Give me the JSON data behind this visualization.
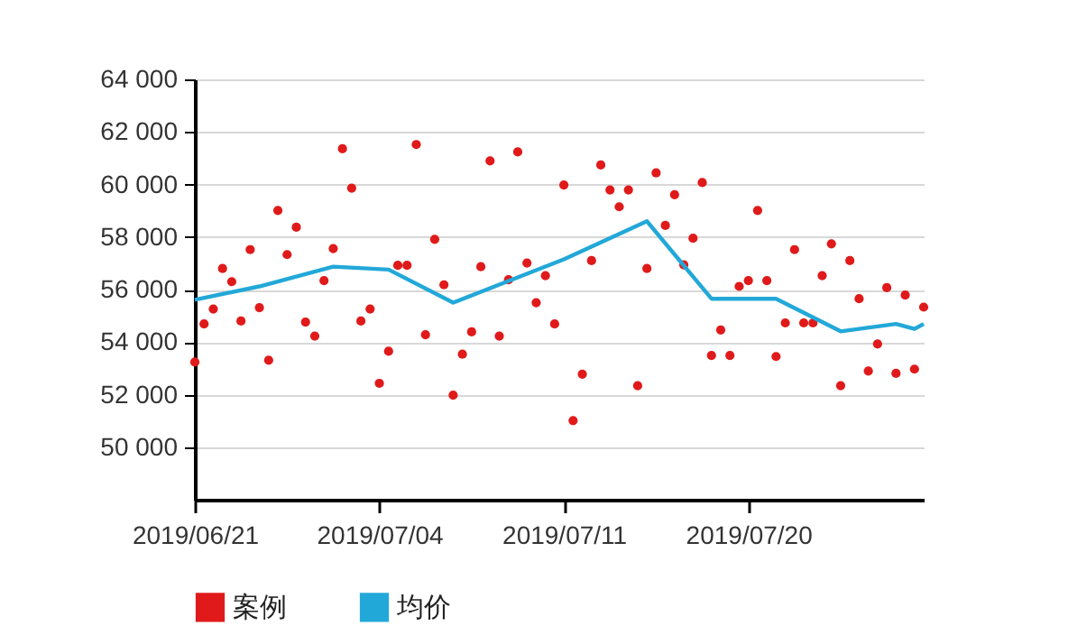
{
  "chart_data": {
    "type": "scatter",
    "categories": [
      "2019/06/21",
      null,
      null,
      null,
      null,
      null,
      null,
      null,
      null,
      null,
      null,
      null,
      null,
      null,
      null,
      null,
      null,
      null,
      null,
      null,
      "2019/07/04",
      null,
      null,
      null,
      null,
      null,
      null,
      null,
      null,
      null,
      null,
      null,
      null,
      null,
      null,
      null,
      null,
      null,
      null,
      null,
      "2019/07/11",
      null,
      null,
      null,
      null,
      null,
      null,
      null,
      null,
      null,
      null,
      null,
      null,
      null,
      null,
      null,
      null,
      null,
      null,
      null,
      "2019/07/20",
      null,
      null,
      null,
      null,
      null,
      null,
      null,
      null,
      null,
      null,
      null,
      null,
      null,
      null,
      null,
      null,
      null,
      null,
      null
    ],
    "series": [
      {
        "name": "案例",
        "type": "scatter",
        "color": "#e01a1a",
        "marker": "circle",
        "values": [
          53240,
          54690,
          55260,
          56800,
          56300,
          54800,
          57520,
          55310,
          53310,
          59010,
          57330,
          58370,
          54760,
          54230,
          56340,
          57560,
          61360,
          59860,
          54800,
          55260,
          52430,
          53650,
          56920,
          56920,
          61520,
          54280,
          57910,
          56180,
          51980,
          53540,
          54390,
          56870,
          60900,
          54230,
          56370,
          61240,
          57010,
          55500,
          56530,
          54690,
          59980,
          51010,
          52780,
          57100,
          60740,
          59790,
          59150,
          59790,
          52340,
          56800,
          60440,
          58440,
          59610,
          56940,
          57950,
          60070,
          53490,
          54460,
          53490,
          56120,
          56340,
          59010,
          56340,
          53450,
          54730,
          57520,
          54730,
          54730,
          56530,
          57740,
          52340,
          57100,
          55650,
          52900,
          53930,
          56070,
          52810,
          55790,
          52970,
          55330
        ]
      },
      {
        "name": "均价",
        "type": "line",
        "color": "#22a8d8",
        "marker": "none",
        "line_style": "solid",
        "values": [
          55610,
          null,
          null,
          null,
          null,
          null,
          null,
          56120,
          null,
          null,
          null,
          null,
          null,
          null,
          null,
          56870,
          null,
          null,
          null,
          null,
          null,
          56760,
          null,
          null,
          null,
          null,
          null,
          null,
          55500,
          null,
          null,
          null,
          null,
          null,
          null,
          null,
          null,
          null,
          null,
          null,
          57150,
          null,
          null,
          null,
          null,
          null,
          null,
          null,
          null,
          58600,
          null,
          null,
          null,
          null,
          null,
          null,
          55650,
          null,
          null,
          null,
          null,
          null,
          null,
          55650,
          null,
          null,
          null,
          null,
          null,
          null,
          54410,
          null,
          null,
          null,
          null,
          null,
          54690,
          null,
          54500,
          54690
        ]
      }
    ],
    "ylim": [
      48000,
      64000
    ],
    "yticks": [
      {
        "value": 50000,
        "label": "50 000"
      },
      {
        "value": 52000,
        "label": "52 000"
      },
      {
        "value": 54000,
        "label": "54 000"
      },
      {
        "value": 56000,
        "label": "56 000"
      },
      {
        "value": 58000,
        "label": "58 000"
      },
      {
        "value": 60000,
        "label": "60 000"
      },
      {
        "value": 62000,
        "label": "62 000"
      },
      {
        "value": 64000,
        "label": "64 000"
      }
    ],
    "grid": "y",
    "legend": "bottom left"
  }
}
